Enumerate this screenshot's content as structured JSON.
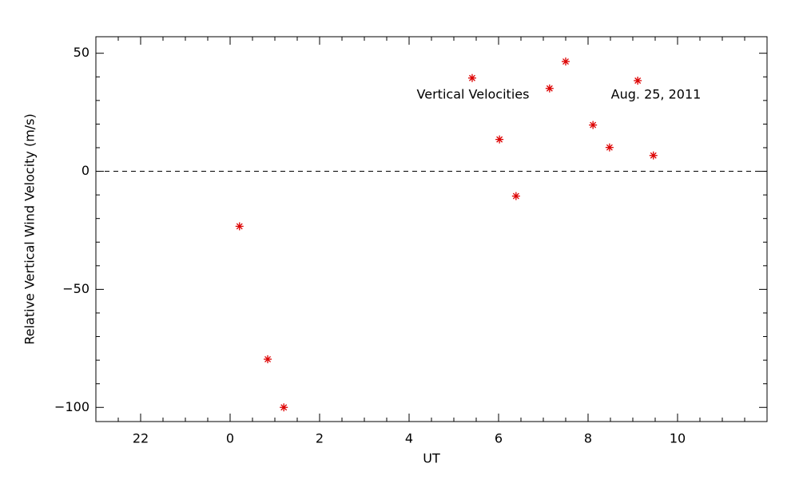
{
  "chart_data": {
    "type": "scatter",
    "xlabel": "UT",
    "ylabel": "Relative Vertical Wind Velocity (m/s)",
    "annotations": [
      "Vertical Velocities",
      "Aug. 25, 2011"
    ],
    "series": [
      {
        "name": "Vertical Velocities",
        "color": "#dd0000",
        "x": [
          0.21,
          0.84,
          1.2,
          5.41,
          6.02,
          6.39,
          7.14,
          7.5,
          8.11,
          8.48,
          9.11,
          9.46
        ],
        "values": [
          -23.3,
          -79.6,
          -100,
          39.5,
          13.5,
          -10.5,
          35.1,
          46.5,
          19.6,
          10.1,
          38.4,
          6.7
        ]
      }
    ],
    "xlim": [
      -3,
      12
    ],
    "xticks": [
      {
        "value": -2,
        "label": "22"
      },
      0,
      2,
      4,
      6,
      8,
      10
    ],
    "ylim": [
      -106,
      57
    ],
    "yticks": [
      {
        "value": -100,
        "label": "−100"
      },
      {
        "value": -50,
        "label": "−50"
      },
      0,
      50
    ],
    "reference_line": 0
  }
}
